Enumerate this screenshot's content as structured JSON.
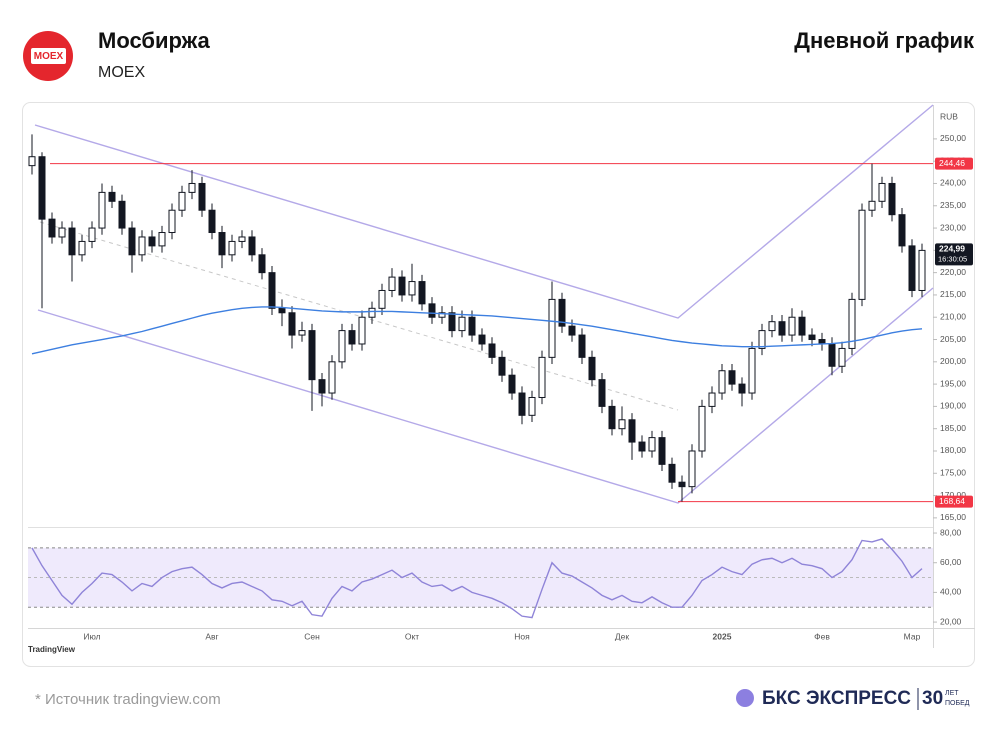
{
  "header": {
    "logo": "MOEX",
    "title": "Мосбиржа",
    "ticker": "MOEX",
    "chart_kind": "Дневной график"
  },
  "chart_data": {
    "type": "candlestick",
    "currency": "RUB",
    "up_color": "#ffffff",
    "down_color": "#131722",
    "categories": [
      null,
      null,
      null,
      null,
      null,
      null,
      "Июл",
      null,
      null,
      null,
      null,
      null,
      null,
      null,
      null,
      null,
      null,
      null,
      "Авг",
      null,
      null,
      null,
      null,
      null,
      null,
      null,
      null,
      null,
      "Сен",
      null,
      null,
      null,
      null,
      null,
      null,
      null,
      null,
      null,
      "Окт",
      null,
      null,
      null,
      null,
      null,
      null,
      null,
      null,
      null,
      null,
      "Ноя",
      null,
      null,
      null,
      null,
      null,
      null,
      null,
      null,
      null,
      "Дек",
      null,
      null,
      null,
      null,
      null,
      null,
      null,
      null,
      null,
      "2025",
      null,
      null,
      null,
      null,
      null,
      null,
      null,
      null,
      null,
      "Фев",
      null,
      null,
      null,
      null,
      null,
      null,
      null,
      null,
      "Мар",
      null
    ],
    "open": [
      244,
      246,
      232,
      228,
      230,
      224,
      227,
      230,
      238,
      236,
      230,
      224,
      228,
      226,
      229,
      234,
      238,
      240,
      234,
      229,
      224,
      227,
      228,
      224,
      220,
      212,
      211,
      206,
      207,
      196,
      193,
      200,
      207,
      204,
      210,
      212,
      216,
      219,
      215,
      218,
      213,
      210,
      211,
      207,
      210,
      206,
      204,
      201,
      197,
      193,
      188,
      192,
      201,
      214,
      208,
      206,
      201,
      196,
      190,
      185,
      187,
      182,
      180,
      183,
      177,
      173,
      172,
      180,
      190,
      193,
      198,
      195,
      193,
      203,
      207,
      209,
      206,
      210,
      206,
      205,
      204,
      199,
      203,
      214,
      234,
      236,
      240,
      233,
      226,
      216
    ],
    "high": [
      251,
      247,
      233.5,
      231.5,
      231.5,
      228.5,
      231.5,
      240,
      239.5,
      237.5,
      231.5,
      229.5,
      229.5,
      230.5,
      235.5,
      239.5,
      243,
      241.5,
      235.5,
      230.5,
      228.5,
      229.5,
      229.5,
      225.5,
      221.5,
      214,
      212.5,
      209,
      208.5,
      197.5,
      201.5,
      208.5,
      208.5,
      211.5,
      213.5,
      217.5,
      221,
      220.5,
      222,
      219.5,
      214.5,
      212.5,
      212.5,
      211.5,
      211.5,
      207.5,
      205.5,
      202.5,
      198.5,
      194.5,
      193.5,
      202.5,
      218,
      215.5,
      209.5,
      207.5,
      202.5,
      197.5,
      191.5,
      190,
      188.5,
      183.5,
      184.5,
      184.5,
      178.5,
      174.5,
      181.5,
      191.5,
      194.5,
      199.5,
      199.5,
      196.5,
      204.5,
      208.5,
      210.5,
      210.5,
      212,
      211.5,
      207.5,
      206.5,
      205.5,
      204.5,
      215.5,
      235.5,
      244.46,
      241.5,
      241.5,
      234.5,
      227.5,
      226.5
    ],
    "low": [
      242,
      212,
      226.5,
      226.5,
      218,
      222.5,
      225.5,
      228.5,
      234.5,
      228.5,
      220,
      222.5,
      224.5,
      224.5,
      227.5,
      232.5,
      236.5,
      232.5,
      227.5,
      221,
      222.5,
      225.5,
      222.5,
      218.5,
      210.5,
      208,
      203,
      204.5,
      189,
      190,
      191.5,
      198.5,
      202.5,
      202.5,
      208.5,
      210.5,
      214.5,
      213.5,
      213.5,
      211.5,
      208.5,
      208.5,
      205.5,
      205.5,
      204.5,
      202.5,
      199.5,
      195.5,
      191.5,
      186,
      186.5,
      190.5,
      199.5,
      206.5,
      204.5,
      199.5,
      194.5,
      188.5,
      183.5,
      183.5,
      178,
      178.5,
      178.5,
      175.5,
      171.5,
      168.64,
      170.5,
      178.5,
      188.5,
      191.5,
      193.5,
      190,
      191.5,
      201.5,
      205.5,
      204.5,
      204.5,
      204.5,
      203.5,
      202.5,
      197,
      197.5,
      201.5,
      212.5,
      232.5,
      234.5,
      231.5,
      224.5,
      214.5,
      214.5
    ],
    "close": [
      246,
      232,
      228,
      230,
      224,
      227,
      230,
      238,
      236,
      230,
      224,
      228,
      226,
      229,
      234,
      238,
      240,
      234,
      229,
      224,
      227,
      228,
      224,
      220,
      212,
      211,
      206,
      207,
      196,
      193,
      200,
      207,
      204,
      210,
      212,
      216,
      219,
      215,
      218,
      213,
      210,
      211,
      207,
      210,
      206,
      204,
      201,
      197,
      193,
      188,
      192,
      201,
      214,
      208,
      206,
      201,
      196,
      190,
      185,
      187,
      182,
      180,
      183,
      177,
      173,
      172,
      180,
      190,
      193,
      198,
      195,
      193,
      203,
      207,
      209,
      206,
      210,
      206,
      205,
      204,
      199,
      203,
      214,
      234,
      236,
      240,
      233,
      226,
      216,
      224.99
    ],
    "ylim": [
      163.4,
      257.6
    ],
    "yticks": [
      {
        "value": 165,
        "label": "165,00"
      },
      {
        "value": 170,
        "label": "170,00"
      },
      {
        "value": 175,
        "label": "175,00"
      },
      {
        "value": 180,
        "label": "180,00"
      },
      {
        "value": 185,
        "label": "185,00"
      },
      {
        "value": 190,
        "label": "190,00"
      },
      {
        "value": 195,
        "label": "195,00"
      },
      {
        "value": 200,
        "label": "200,00"
      },
      {
        "value": 205,
        "label": "205,00"
      },
      {
        "value": 210,
        "label": "210,00"
      },
      {
        "value": 215,
        "label": "215,00"
      },
      {
        "value": 220,
        "label": "220,00"
      },
      {
        "value": 225,
        "label": "225,00"
      },
      {
        "value": 230,
        "label": "230,00"
      },
      {
        "value": 235,
        "label": "235,00"
      },
      {
        "value": 240,
        "label": "240,00"
      },
      {
        "value": 245,
        "label": "245,00"
      },
      {
        "value": 250,
        "label": "250,00"
      }
    ],
    "moving_average": {
      "type": "line",
      "color": "#3d7fe0",
      "values": [
        201.8,
        202.3,
        202.8,
        203.3,
        203.8,
        204.2,
        204.6,
        205.0,
        205.4,
        205.8,
        206.3,
        206.8,
        207.4,
        208.0,
        208.6,
        209.2,
        209.8,
        210.4,
        210.9,
        211.3,
        211.7,
        212.0,
        212.2,
        212.3,
        212.3,
        212.2,
        212.0,
        211.8,
        211.6,
        211.4,
        211.3,
        211.2,
        211.2,
        211.2,
        211.3,
        211.3,
        211.3,
        211.2,
        211.1,
        211.0,
        210.9,
        210.8,
        210.7,
        210.6,
        210.5,
        210.4,
        210.3,
        210.1,
        209.9,
        209.7,
        209.5,
        209.3,
        209.1,
        208.9,
        208.6,
        208.3,
        208.0,
        207.6,
        207.2,
        206.8,
        206.4,
        206.0,
        205.6,
        205.2,
        204.8,
        204.5,
        204.2,
        204.0,
        203.8,
        203.6,
        203.5,
        203.4,
        203.4,
        203.4,
        203.5,
        203.6,
        203.7,
        203.8,
        203.9,
        204.0,
        204.1,
        204.3,
        204.6,
        205.0,
        205.5,
        206.0,
        206.5,
        206.9,
        207.2,
        207.4
      ]
    },
    "levels": [
      {
        "value": 244.46,
        "label": "244,46",
        "color": "#f23645"
      },
      {
        "value": 168.64,
        "label": "168,64",
        "color": "#f23645"
      }
    ],
    "last_price": {
      "value": 224.99,
      "label": "224,99"
    },
    "last_time": "16:30:05",
    "rsi": {
      "type": "line",
      "color": "#8f84d8",
      "values": [
        70,
        58,
        48,
        38,
        32,
        40,
        46,
        53,
        52,
        47,
        41,
        46,
        44,
        50,
        54,
        56,
        57,
        52,
        46,
        43,
        46,
        47,
        44,
        41,
        35,
        34,
        31,
        34,
        25,
        24,
        36,
        44,
        41,
        47,
        49,
        52,
        55,
        50,
        53,
        47,
        44,
        45,
        41,
        44,
        40,
        38,
        36,
        33,
        29,
        24,
        23,
        42,
        60,
        53,
        51,
        47,
        43,
        38,
        35,
        38,
        34,
        33,
        37,
        33,
        30,
        30,
        38,
        48,
        52,
        57,
        54,
        52,
        59,
        62,
        63,
        60,
        63,
        59,
        58,
        56,
        50,
        54,
        62,
        75,
        74,
        76,
        69,
        61,
        50,
        56
      ],
      "ylim": [
        16,
        83.4
      ],
      "yticks": [
        {
          "value": 20,
          "label": "20,00"
        },
        {
          "value": 40,
          "label": "40,00"
        },
        {
          "value": 60,
          "label": "60,00"
        },
        {
          "value": 80,
          "label": "80,00"
        }
      ],
      "upper": 70,
      "lower": 30,
      "mid": 50
    }
  },
  "footer": {
    "watermark": "TradingView",
    "source": "* Источник tradingview.com",
    "brand": "БКС ЭКСПРЕСС",
    "anniversary": "30",
    "anniversary_top": "ЛЕТ",
    "anniversary_bottom": "ПОБЕД"
  }
}
